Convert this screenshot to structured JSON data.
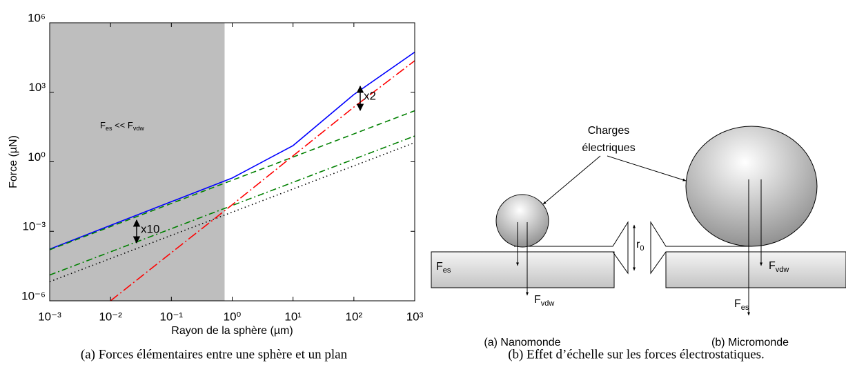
{
  "chart_data": {
    "type": "line",
    "xlabel": "Rayon de la sphère (µm)",
    "ylabel": "Force (µN)",
    "xscale": "log",
    "yscale": "log",
    "x": [
      0.001,
      0.01,
      0.1,
      1,
      10,
      100,
      1000
    ],
    "series": [
      {
        "color": "#0000ff",
        "style": "solid",
        "values": [
          0.00017,
          0.0018,
          0.019,
          0.2,
          5,
          800,
          54000
        ]
      },
      {
        "color": "#008000",
        "style": "dashed",
        "values": [
          0.00016,
          0.0016,
          0.016,
          0.16,
          1.6,
          16,
          160
        ]
      },
      {
        "color": "#008000",
        "style": "dashdot",
        "values": [
          1.3e-05,
          0.00013,
          0.0013,
          0.013,
          0.13,
          1.3,
          13
        ]
      },
      {
        "color": "#000000",
        "style": "dotted",
        "values": [
          6.7e-06,
          6.7e-05,
          0.00067,
          0.0067,
          0.067,
          0.67,
          6.7
        ]
      },
      {
        "color": "#ff0000",
        "style": "longdashdot",
        "values": [
          null,
          1e-06,
          0.00012,
          0.014,
          1.8,
          230,
          23000
        ]
      }
    ],
    "shaded_x": [
      0.001,
      0.75
    ],
    "shade_color": "#bebebe",
    "xlim": [
      0.001,
      1000
    ],
    "ylim": [
      1e-06,
      1000000
    ],
    "xticks": [
      {
        "value": 0.001,
        "label": "10⁻³"
      },
      {
        "value": 0.01,
        "label": "10⁻²"
      },
      {
        "value": 0.1,
        "label": "10⁻¹"
      },
      {
        "value": 1,
        "label": "10⁰"
      },
      {
        "value": 10,
        "label": "10¹"
      },
      {
        "value": 100,
        "label": "10²"
      },
      {
        "value": 1000,
        "label": "10³"
      }
    ],
    "yticks": [
      {
        "value": 1e-06,
        "label": "10⁻⁶"
      },
      {
        "value": 0.001,
        "label": "10⁻³"
      },
      {
        "value": 1,
        "label": "10⁰"
      },
      {
        "value": 1000,
        "label": "10³"
      },
      {
        "value": 1000000,
        "label": "10⁶"
      }
    ],
    "annotations": [
      "x10",
      "x2"
    ],
    "region_label": [
      "F",
      "es",
      " << F",
      "vdw"
    ]
  },
  "diagram": {
    "charges_label": [
      "Charges",
      "électriques"
    ],
    "left": {
      "title": "(a) Nanomonde",
      "fes": {
        "base": "F",
        "sub": "es"
      },
      "fvdw": {
        "base": "F",
        "sub": "vdw"
      }
    },
    "gap": {
      "base": "r",
      "sub": "0"
    },
    "right": {
      "title": "(b) Micromonde",
      "fes": {
        "base": "F",
        "sub": "es"
      },
      "fvdw": {
        "base": "F",
        "sub": "vdw"
      }
    }
  },
  "captions": [
    "(a) Forces élémentaires entre une sphère et un plan",
    "(b) Effet d’échelle sur les forces électrostatiques."
  ]
}
